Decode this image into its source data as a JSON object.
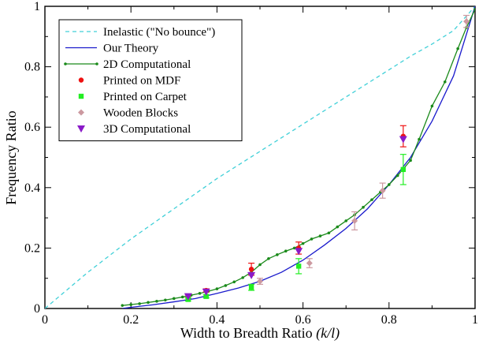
{
  "chart_data": {
    "type": "scatter",
    "title": "",
    "xlabel": "Width to Breadth Ratio",
    "xlabel_var": "(k/l)",
    "ylabel": "Frequency Ratio",
    "xlim": [
      0,
      1
    ],
    "ylim": [
      0,
      1
    ],
    "x_ticks": [
      "0",
      "0.2",
      "0.4",
      "0.6",
      "0.8",
      "1"
    ],
    "y_ticks": [
      "0",
      "0.2",
      "0.4",
      "0.6",
      "0.8",
      "1"
    ],
    "legend_position": "top-left",
    "legend": [
      "Inelastic (\"No bounce\")",
      "Our Theory",
      "2D Computational",
      "Printed on MDF",
      "Printed on Carpet",
      "Wooden Blocks",
      "3D Computational"
    ],
    "series": [
      {
        "name": "Inelastic (\"No bounce\")",
        "kind": "dashed-line",
        "color": "#40d0d8",
        "x": [
          0.0,
          0.05,
          0.1,
          0.15,
          0.2,
          0.25,
          0.3,
          0.35,
          0.4,
          0.45,
          0.5,
          0.55,
          0.6,
          0.65,
          0.7,
          0.75,
          0.8,
          0.85,
          0.9,
          0.95,
          1.0
        ],
        "y": [
          0.0,
          0.06,
          0.12,
          0.175,
          0.23,
          0.28,
          0.33,
          0.38,
          0.43,
          0.475,
          0.52,
          0.565,
          0.61,
          0.655,
          0.7,
          0.745,
          0.79,
          0.835,
          0.875,
          0.92,
          1.0
        ]
      },
      {
        "name": "Our Theory",
        "kind": "line",
        "color": "#1a1acc",
        "x": [
          0.18,
          0.2,
          0.25,
          0.3,
          0.35,
          0.4,
          0.45,
          0.5,
          0.55,
          0.6,
          0.65,
          0.7,
          0.75,
          0.8,
          0.85,
          0.9,
          0.95,
          1.0
        ],
        "y": [
          0.0,
          0.004,
          0.012,
          0.022,
          0.033,
          0.05,
          0.068,
          0.09,
          0.12,
          0.16,
          0.21,
          0.265,
          0.33,
          0.41,
          0.5,
          0.62,
          0.77,
          1.0
        ]
      },
      {
        "name": "2D Computational",
        "kind": "line-markers",
        "color": "#1a8a1a",
        "x": [
          0.18,
          0.2,
          0.22,
          0.24,
          0.26,
          0.28,
          0.3,
          0.32,
          0.34,
          0.36,
          0.38,
          0.4,
          0.42,
          0.44,
          0.46,
          0.48,
          0.5,
          0.52,
          0.54,
          0.56,
          0.58,
          0.6,
          0.62,
          0.64,
          0.66,
          0.68,
          0.7,
          0.72,
          0.74,
          0.76,
          0.78,
          0.8,
          0.82,
          0.85,
          0.87,
          0.9,
          0.93,
          0.96,
          0.98,
          1.0
        ],
        "y": [
          0.01,
          0.013,
          0.016,
          0.02,
          0.024,
          0.028,
          0.033,
          0.038,
          0.044,
          0.05,
          0.057,
          0.065,
          0.076,
          0.088,
          0.102,
          0.12,
          0.145,
          0.165,
          0.178,
          0.19,
          0.2,
          0.215,
          0.23,
          0.24,
          0.25,
          0.27,
          0.29,
          0.31,
          0.335,
          0.36,
          0.385,
          0.41,
          0.44,
          0.49,
          0.56,
          0.67,
          0.75,
          0.86,
          0.93,
          0.99
        ]
      },
      {
        "name": "Printed on MDF",
        "kind": "points",
        "color": "#ee1111",
        "marker": "circle",
        "x": [
          0.333,
          0.375,
          0.48,
          0.59,
          0.833
        ],
        "y": [
          0.04,
          0.06,
          0.13,
          0.2,
          0.57
        ],
        "err": [
          0.005,
          0.005,
          0.02,
          0.02,
          0.035
        ]
      },
      {
        "name": "Printed on Carpet",
        "kind": "points",
        "color": "#22ee22",
        "marker": "square",
        "x": [
          0.333,
          0.375,
          0.48,
          0.59,
          0.833
        ],
        "y": [
          0.03,
          0.04,
          0.07,
          0.14,
          0.46
        ],
        "err": [
          0.005,
          0.005,
          0.01,
          0.025,
          0.05
        ]
      },
      {
        "name": "Wooden Blocks",
        "kind": "points",
        "color": "#cc99a0",
        "marker": "diamond",
        "x": [
          0.5,
          0.615,
          0.72,
          0.785,
          0.98
        ],
        "y": [
          0.09,
          0.15,
          0.29,
          0.39,
          0.95
        ],
        "err": [
          0.01,
          0.015,
          0.03,
          0.025,
          0.02
        ]
      },
      {
        "name": "3D Computational",
        "kind": "points",
        "color": "#8a1ac8",
        "marker": "triangle-down",
        "x": [
          0.333,
          0.375,
          0.48,
          0.59,
          0.833
        ],
        "y": [
          0.04,
          0.055,
          0.11,
          0.19,
          0.56
        ],
        "err": [
          0,
          0,
          0,
          0,
          0
        ]
      }
    ]
  }
}
